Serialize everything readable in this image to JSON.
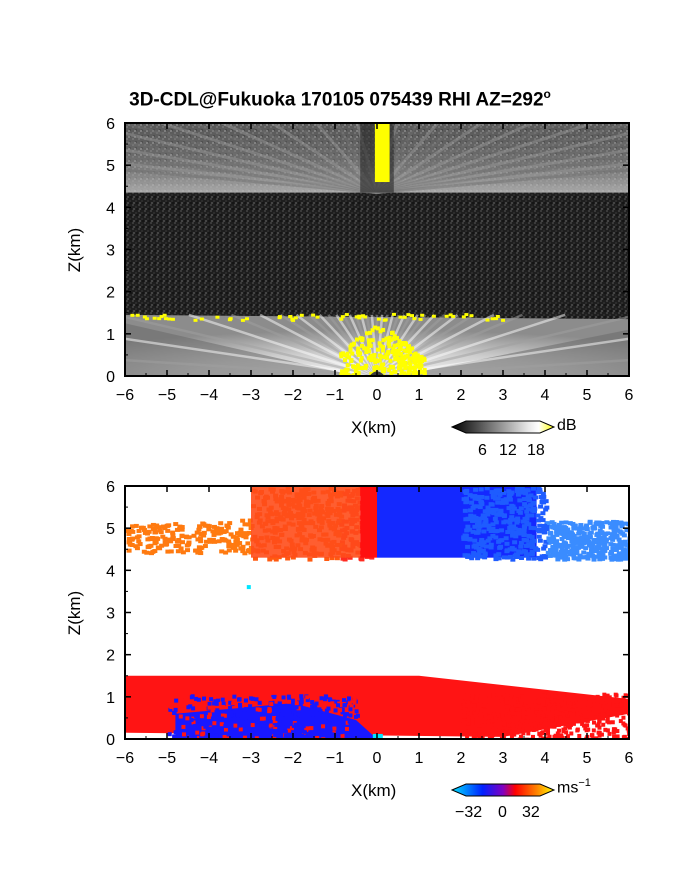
{
  "title": "3D-CDL@Fukuoka 170105 075439 RHI AZ=292",
  "title_degree": "o",
  "panels": [
    {
      "name": "backscatter",
      "xlabel": "X(km)",
      "ylabel": "Z(km)",
      "colorbar_unit": "dB",
      "colorbar_ticks": [
        "6",
        "12",
        "18"
      ]
    },
    {
      "name": "doppler-velocity",
      "xlabel": "X(km)",
      "ylabel": "Z(km)",
      "colorbar_unit": "ms",
      "colorbar_unit_exp": "−1",
      "colorbar_ticks": [
        "−32",
        "0",
        "32"
      ]
    }
  ],
  "chart_data": [
    {
      "type": "heatmap",
      "title": "3D-CDL@Fukuoka 170105 075439 RHI AZ=292°",
      "xlabel": "X(km)",
      "ylabel": "Z(km)",
      "xlim": [
        -6,
        6
      ],
      "ylim": [
        0,
        6
      ],
      "xticks": [
        -6,
        -5,
        -4,
        -3,
        -2,
        -1,
        0,
        1,
        2,
        3,
        4,
        5,
        6
      ],
      "yticks": [
        0,
        1,
        2,
        3,
        4,
        5,
        6
      ],
      "colorbar": {
        "unit": "dB",
        "ticks": [
          6,
          12,
          18
        ],
        "colormap": "grayscale to yellow"
      },
      "layers": [
        {
          "z_range": [
            0,
            1.5
          ],
          "level": "bright",
          "note_values_db": [
            12,
            18
          ]
        },
        {
          "z_range": [
            1.5,
            4.3
          ],
          "level": "dark",
          "note_values_db": [
            4,
            6
          ]
        },
        {
          "z_range": [
            4.3,
            6
          ],
          "level": "medium",
          "note_values_db": [
            8,
            14
          ]
        }
      ]
    },
    {
      "type": "heatmap",
      "xlabel": "X(km)",
      "ylabel": "Z(km)",
      "xlim": [
        -6,
        6
      ],
      "ylim": [
        0,
        6
      ],
      "xticks": [
        -6,
        -5,
        -4,
        -3,
        -2,
        -1,
        0,
        1,
        2,
        3,
        4,
        5,
        6
      ],
      "yticks": [
        0,
        1,
        2,
        3,
        4,
        5,
        6
      ],
      "colorbar": {
        "unit": "ms^-1",
        "ticks": [
          -32,
          0,
          32
        ],
        "colormap": "cyan-blue-red-orange-yellow"
      },
      "regions": [
        {
          "x_range": [
            -6,
            0
          ],
          "z_range": [
            4.3,
            6
          ],
          "velocity_sign": "positive",
          "color": "#ff6a00"
        },
        {
          "x_range": [
            0,
            6
          ],
          "z_range": [
            4.3,
            6
          ],
          "velocity_sign": "negative",
          "color": "#1a3cff"
        },
        {
          "x_range": [
            -6,
            6
          ],
          "z_range": [
            0.2,
            1.5
          ],
          "velocity_sign": "positive",
          "color": "#ff1a1a"
        },
        {
          "x_range": [
            -5,
            0
          ],
          "z_range": [
            0,
            0.9
          ],
          "velocity_sign": "negative",
          "color": "#1a1aff"
        }
      ]
    }
  ]
}
